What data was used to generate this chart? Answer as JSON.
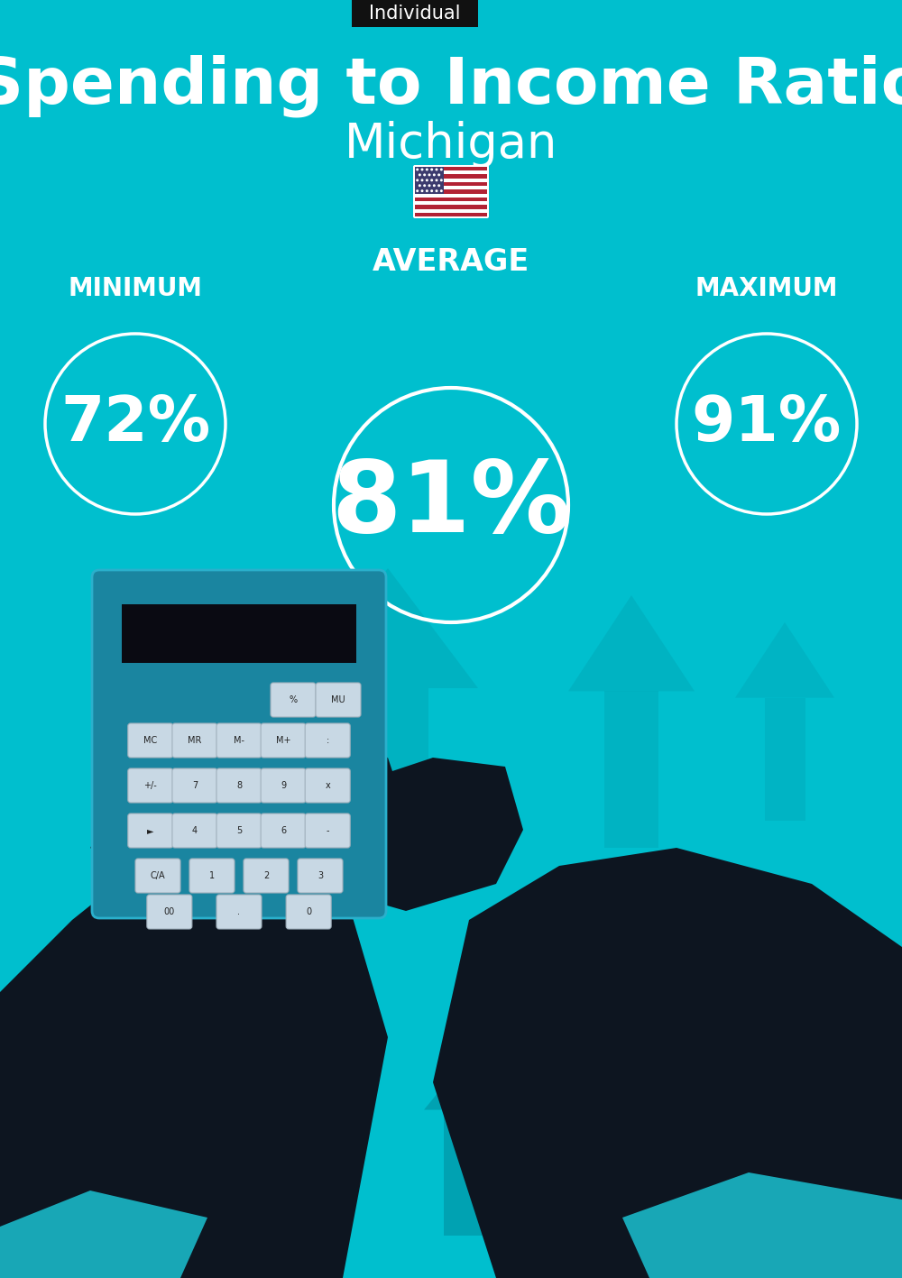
{
  "bg_color": "#00BFCE",
  "title_label": "Individual",
  "title_label_bg": "#111111",
  "title_label_color": "#ffffff",
  "main_title": "Spending to Income Ratio",
  "subtitle": "Michigan",
  "avg_label": "AVERAGE",
  "min_label": "MINIMUM",
  "max_label": "MAXIMUM",
  "avg_value": "81%",
  "min_value": "72%",
  "max_value": "91%",
  "circle_color": "#ffffff",
  "text_color": "#ffffff",
  "fig_width": 10.0,
  "fig_height": 14.17,
  "dpi": 100,
  "arrow_color": "#00A8B8",
  "house_color": "#0098A8",
  "hand_color": "#0D1520",
  "calc_color": "#1A85A0",
  "sleeve_color": "#1AB8C8",
  "bag_color": "#0090A0",
  "bag2_color": "#007888"
}
